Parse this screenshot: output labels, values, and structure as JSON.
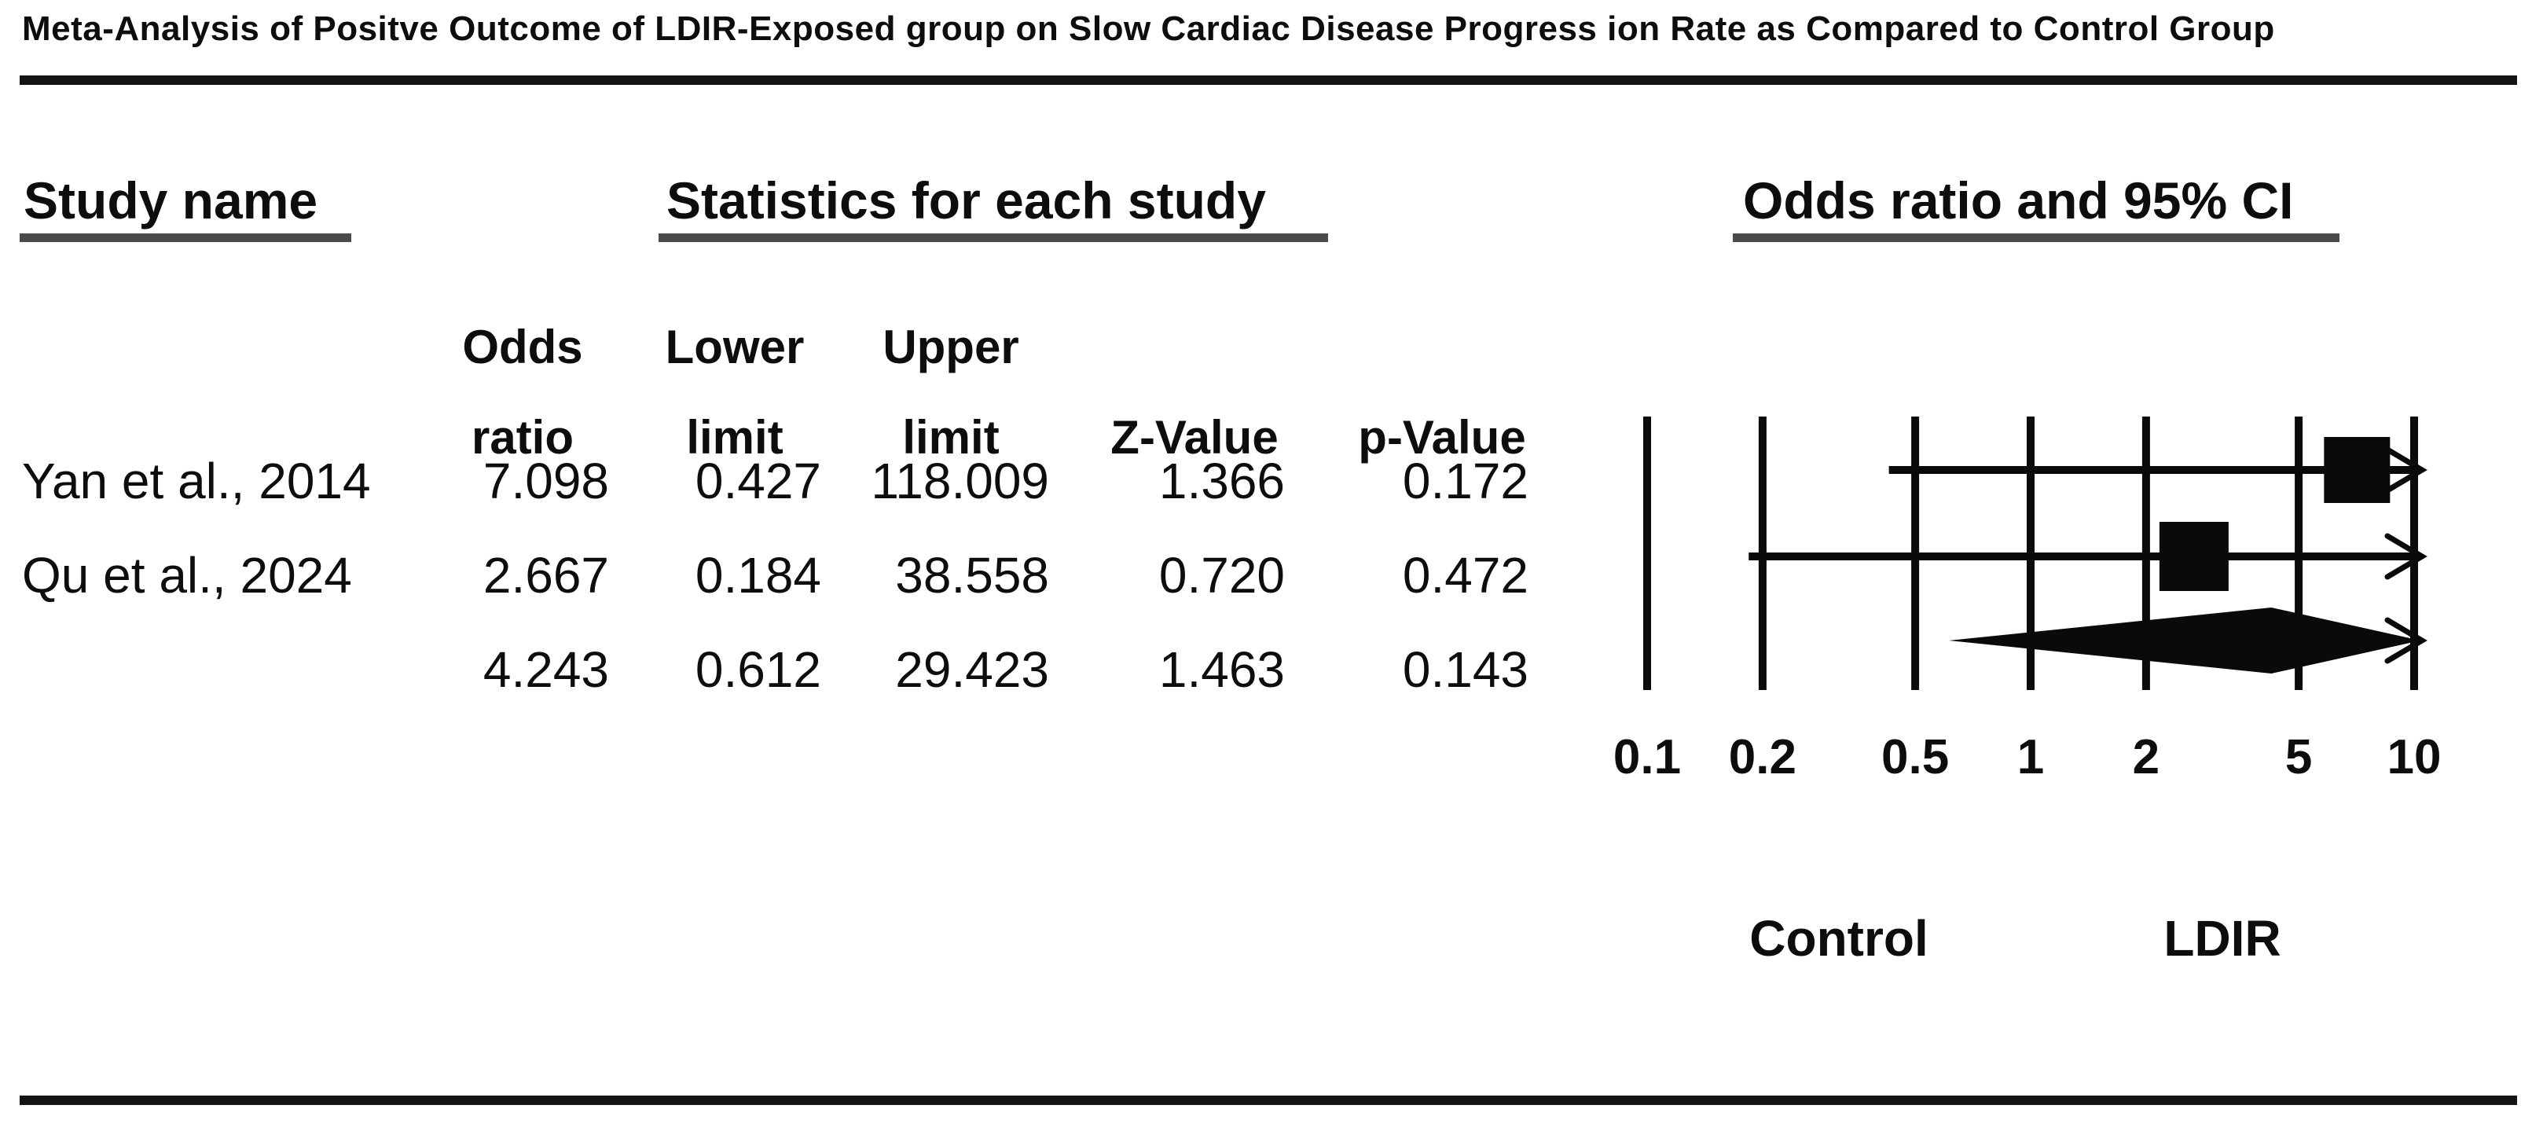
{
  "title": "Meta-Analysis of Positve Outcome of LDIR-Exposed group on Slow Cardiac Disease Progress ion Rate as Compared to Control Group",
  "table": {
    "group_headers": {
      "study": "Study name",
      "stats": "Statistics for each study",
      "plot": "Odds ratio and 95% CI"
    },
    "column_headers": [
      {
        "line1": "Odds",
        "line2": "ratio"
      },
      {
        "line1": "Lower",
        "line2": "limit"
      },
      {
        "line1": "Upper",
        "line2": "limit"
      },
      {
        "line1": "",
        "line2": "Z-Value"
      },
      {
        "line1": "",
        "line2": "p-Value"
      }
    ],
    "rows": [
      {
        "study": "Yan et al., 2014",
        "odds_ratio": "7.098",
        "lower": "0.427",
        "upper": "118.009",
        "z": "1.366",
        "p": "0.172"
      },
      {
        "study": "Qu et al., 2024",
        "odds_ratio": "2.667",
        "lower": "0.184",
        "upper": "38.558",
        "z": "0.720",
        "p": "0.472"
      },
      {
        "study": "",
        "odds_ratio": "4.243",
        "lower": "0.612",
        "upper": "29.423",
        "z": "1.463",
        "p": "0.143"
      }
    ]
  },
  "chart_data": {
    "type": "forest",
    "x_scale": "log10",
    "xlim": [
      0.1,
      10
    ],
    "axis_ticks": [
      "0.1",
      "0.2",
      "0.5",
      "1",
      "2",
      "5",
      "10"
    ],
    "studies": [
      {
        "name": "Yan et al., 2014",
        "odds_ratio": 7.098,
        "ci_low": 0.427,
        "ci_high": 118.009,
        "marker": "square"
      },
      {
        "name": "Qu et al., 2024",
        "odds_ratio": 2.667,
        "ci_low": 0.184,
        "ci_high": 38.558,
        "marker": "square"
      }
    ],
    "summary": {
      "odds_ratio": 4.243,
      "ci_low": 0.612,
      "ci_high": 29.423,
      "marker": "diamond"
    },
    "group_labels": {
      "left": "Control",
      "right": "LDIR"
    },
    "colors": {
      "ink": "#0a0a0a",
      "rule": "#141414",
      "header_underline": "#4a4a4a"
    }
  }
}
